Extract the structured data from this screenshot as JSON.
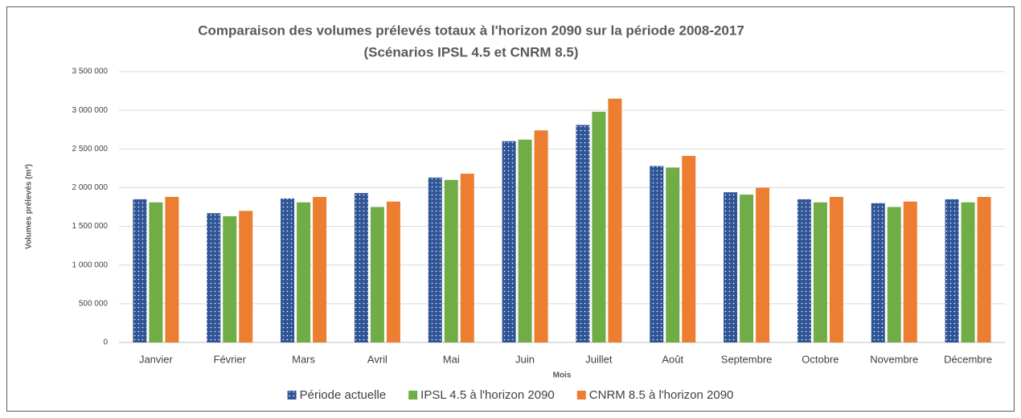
{
  "chart_data": {
    "type": "bar",
    "title": "Comparaison des volumes prélevés totaux à l'horizon 2090 sur la période 2008-2017",
    "subtitle": "(Scénarios IPSL 4.5 et CNRM 8.5)",
    "y_label": "Volumes prélevés (m³)",
    "x_label": "Mois",
    "categories": [
      "Janvier",
      "Février",
      "Mars",
      "Avril",
      "Mai",
      "Juin",
      "Juillet",
      "Août",
      "Septembre",
      "Octobre",
      "Novembre",
      "Décembre"
    ],
    "series": [
      {
        "name": "Période actuelle",
        "color": "#2f5597",
        "pattern": "dots",
        "values": [
          1850000,
          1670000,
          1860000,
          1930000,
          2130000,
          2600000,
          2810000,
          2280000,
          1940000,
          1850000,
          1800000,
          1850000
        ]
      },
      {
        "name": "IPSL 4.5 à l'horizon 2090",
        "color": "#70ad47",
        "values": [
          1810000,
          1630000,
          1810000,
          1750000,
          2100000,
          2620000,
          2980000,
          2260000,
          1910000,
          1810000,
          1750000,
          1810000
        ]
      },
      {
        "name": "CNRM 8.5 à l'horizon 2090",
        "color": "#ed7d31",
        "values": [
          1880000,
          1700000,
          1880000,
          1820000,
          2180000,
          2740000,
          3150000,
          2410000,
          2000000,
          1880000,
          1820000,
          1880000
        ]
      }
    ],
    "ylim": [
      0,
      3500000
    ],
    "yticks": [
      0,
      {
        "value": 500000,
        "label": "500 000"
      },
      {
        "value": 1000000,
        "label": "1 000 000"
      },
      {
        "value": 1500000,
        "label": "1 500 000"
      },
      {
        "value": 2000000,
        "label": "2 000 000"
      },
      {
        "value": 2500000,
        "label": "2 500 000"
      },
      {
        "value": 3000000,
        "label": "3 000 000"
      },
      {
        "value": 3500000,
        "label": "3 500 000"
      }
    ],
    "grid": true,
    "legend": "bottom"
  }
}
